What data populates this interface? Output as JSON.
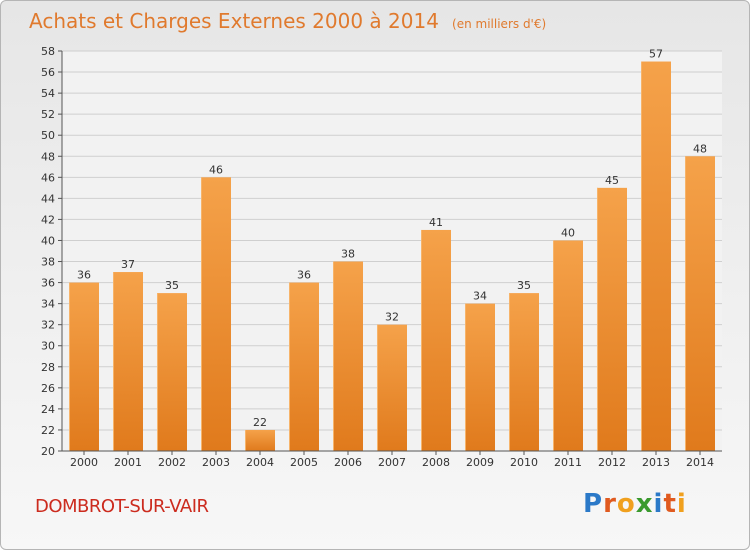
{
  "title": "Achats et Charges Externes 2000 à 2014",
  "subtitle": "(en milliers d'€)",
  "commune": "DOMBROT-SUR-VAIR",
  "logo": {
    "letters": [
      "P",
      "r",
      "o",
      "x",
      "i",
      "t",
      "i"
    ],
    "colors": [
      "#2b79c8",
      "#e05a1f",
      "#f0a01e",
      "#3a9a2e",
      "#2b79c8",
      "#e05a1f",
      "#f0a01e"
    ]
  },
  "colors": {
    "bar": "#f0922e",
    "bar_dark": "#e27e1f",
    "text": "#333333",
    "title": "#e07a2e",
    "commune": "#cc2b1e"
  },
  "chart_data": {
    "type": "bar",
    "categories": [
      "2000",
      "2001",
      "2002",
      "2003",
      "2004",
      "2005",
      "2006",
      "2007",
      "2008",
      "2009",
      "2010",
      "2011",
      "2012",
      "2013",
      "2014"
    ],
    "values": [
      36,
      37,
      35,
      46,
      22,
      36,
      38,
      32,
      41,
      34,
      35,
      40,
      45,
      57,
      48
    ],
    "ylim": [
      20,
      58
    ],
    "yticks": [
      20,
      22,
      24,
      26,
      28,
      30,
      32,
      34,
      36,
      38,
      40,
      42,
      44,
      46,
      48,
      50,
      52,
      54,
      56,
      58
    ],
    "grid": true,
    "data_labels": true
  }
}
